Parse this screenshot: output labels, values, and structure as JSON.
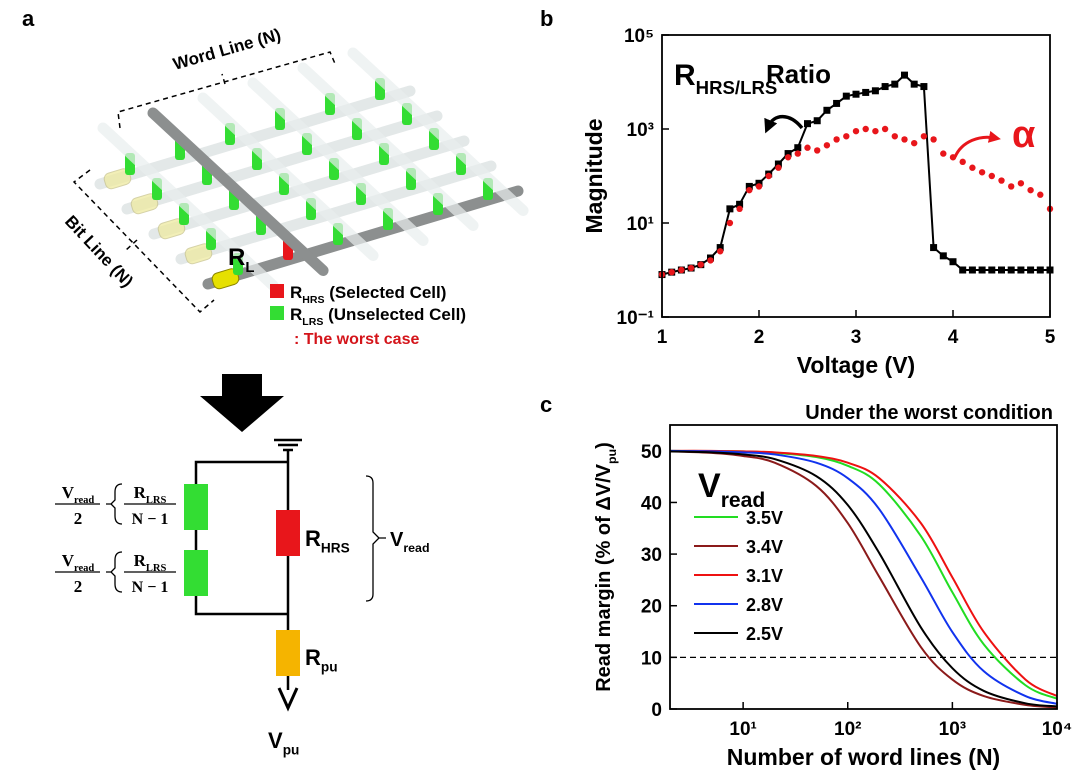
{
  "panel_labels": [
    "a",
    "b",
    "c"
  ],
  "diagram": {
    "word_line": "Word Line (N)",
    "bit_line": "Bit Line (N)",
    "load": {
      "main": "R",
      "sub": "L"
    },
    "legend": [
      {
        "main": "R",
        "sub": "HRS",
        "text": " (Selected Cell)"
      },
      {
        "main": "R",
        "sub": "LRS",
        "text": "  (Unselected Cell)"
      }
    ],
    "worst_case": ": The worst case",
    "circuit": {
      "fractions": [
        {
          "num_main": "V",
          "num_sub": "read",
          "den": "2",
          "res_main": "R",
          "res_sub": "LRS",
          "res_den": "N − 1"
        },
        {
          "num_main": "V",
          "num_sub": "read",
          "den": "2",
          "res_main": "R",
          "res_sub": "LRS",
          "res_den": "N − 1"
        }
      ],
      "selected": {
        "main": "R",
        "sub": "HRS"
      },
      "selected_voltage": {
        "main": "V",
        "sub": "read"
      },
      "pullup": {
        "main": "R",
        "sub": "pu"
      },
      "output": {
        "main": "V",
        "sub": "pu"
      }
    }
  },
  "chart_data": [
    {
      "type": "line",
      "annotations": {
        "r_main": "R",
        "r_sub": "HRS/LRS",
        "ratio": "Ratio",
        "alpha": "α"
      },
      "xlabel": "Voltage (V)",
      "ylabel": "Magnitude",
      "x": [
        1.0,
        1.1,
        1.2,
        1.3,
        1.4,
        1.5,
        1.6,
        1.7,
        1.8,
        1.9,
        2.0,
        2.1,
        2.2,
        2.3,
        2.4,
        2.5,
        2.6,
        2.7,
        2.8,
        2.9,
        3.0,
        3.1,
        3.2,
        3.3,
        3.4,
        3.5,
        3.6,
        3.7,
        3.8,
        3.9,
        4.0,
        4.1,
        4.2,
        4.3,
        4.4,
        4.5,
        4.6,
        4.7,
        4.8,
        4.9,
        5.0
      ],
      "series": [
        {
          "color": "#000000",
          "marker": "square",
          "line": true,
          "values": [
            0.8,
            0.9,
            1.0,
            1.1,
            1.3,
            1.8,
            3,
            20,
            25,
            60,
            70,
            110,
            180,
            300,
            400,
            1300,
            1500,
            2500,
            3500,
            5000,
            5500,
            6000,
            6500,
            8000,
            9000,
            14000,
            9000,
            8000,
            3,
            2,
            1.5,
            1,
            1,
            1,
            1,
            1,
            1,
            1,
            1,
            1,
            1
          ]
        },
        {
          "color": "#e8161b",
          "marker": "circle",
          "line": false,
          "values": [
            0.8,
            0.9,
            1.0,
            1.1,
            1.3,
            1.6,
            2.5,
            10,
            20,
            50,
            60,
            100,
            150,
            250,
            300,
            400,
            350,
            450,
            600,
            700,
            900,
            1000,
            900,
            1000,
            700,
            600,
            500,
            700,
            600,
            300,
            250,
            200,
            150,
            120,
            100,
            80,
            60,
            70,
            50,
            40,
            20
          ]
        }
      ],
      "xlim": [
        1,
        5
      ],
      "ylim": [
        0.1,
        100000
      ],
      "yscale": "log",
      "xticks": [
        1,
        2,
        3,
        4,
        5
      ],
      "yticks": [
        {
          "value": 0.1,
          "label": "10⁻¹"
        },
        {
          "value": 10,
          "label": "10¹"
        },
        {
          "value": 1000,
          "label": "10³"
        },
        {
          "value": 100000,
          "label": "10⁵"
        }
      ]
    },
    {
      "type": "line",
      "title": "Under the worst condition",
      "xlabel": "Number of word lines (N)",
      "ylabel": "Read margin (% of ΔV/V",
      "ylabel_sub": "pu",
      "ylabel_end": ")",
      "legend_title": "V",
      "legend_title_sub": "read",
      "legend": "upper left",
      "x": [
        2,
        5,
        10,
        20,
        50,
        100,
        200,
        500,
        1000,
        2000,
        5000,
        10000
      ],
      "series": [
        {
          "name": "3.5V",
          "color": "#22dd22",
          "values": [
            50.0,
            49.9,
            49.9,
            49.6,
            48.8,
            47.1,
            43.5,
            33.5,
            22.6,
            12.5,
            4.6,
            2.0
          ]
        },
        {
          "name": "3.4V",
          "color": "#8b1a1a",
          "values": [
            49.9,
            49.6,
            49.0,
            47.7,
            43.2,
            36.0,
            25.6,
            12.0,
            5.7,
            2.5,
            0.8,
            0.3
          ]
        },
        {
          "name": "3.1V",
          "color": "#ee1111",
          "values": [
            50.0,
            50.0,
            49.9,
            49.7,
            49.0,
            47.7,
            44.7,
            36.0,
            25.5,
            14.9,
            5.7,
            2.5
          ]
        },
        {
          "name": "2.8V",
          "color": "#1133ee",
          "values": [
            50.0,
            49.9,
            49.7,
            49.3,
            47.7,
            44.7,
            38.7,
            25.5,
            14.9,
            7.3,
            2.5,
            1.0
          ]
        },
        {
          "name": "2.5V",
          "color": "#000000",
          "values": [
            49.9,
            49.7,
            49.3,
            48.4,
            45.1,
            39.5,
            30.2,
            15.8,
            7.9,
            3.5,
            1.1,
            0.5
          ]
        }
      ],
      "xlim": [
        2,
        10000
      ],
      "xscale": "log",
      "ylim": [
        0,
        55
      ],
      "xticks": [
        {
          "value": 10,
          "label": "10¹"
        },
        {
          "value": 100,
          "label": "10²"
        },
        {
          "value": 1000,
          "label": "10³"
        },
        {
          "value": 10000,
          "label": "10⁴"
        }
      ],
      "yticks": [
        0,
        10,
        20,
        30,
        40,
        50
      ],
      "reference_line": 10
    }
  ]
}
